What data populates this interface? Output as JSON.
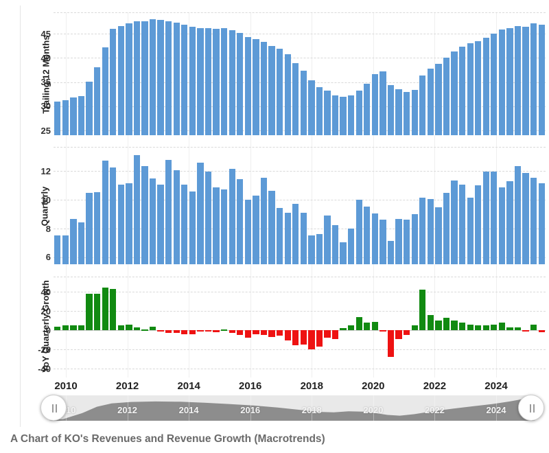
{
  "caption": "A Chart of KO's Revenues and Revenue Growth (Macrotrends)",
  "colors": {
    "blue": "#5d9ad6",
    "green": "#118a11",
    "red": "#ee1212",
    "grid": "#d9d9d9",
    "nav_track": "#e9e9e9",
    "nav_area": "#8d8d8d"
  },
  "icons": {
    "drag_handle": "grip-lines-vertical"
  },
  "xaxis": {
    "tick_labels": [
      "2010",
      "2012",
      "2014",
      "2016",
      "2018",
      "2020",
      "2022",
      "2024"
    ]
  },
  "chart_data": [
    {
      "type": "bar",
      "ylabel": "Trailing 12 Months",
      "yticks": [
        25,
        30,
        35,
        40,
        45
      ],
      "ylim": [
        24.0,
        49.4
      ],
      "series_color": "blue",
      "x_start": "2009-Q4",
      "x_end": "2025-Q1",
      "values": [
        31.0,
        31.3,
        31.8,
        32.1,
        35.1,
        38.1,
        42.2,
        46.0,
        46.6,
        47.2,
        47.5,
        47.6,
        48.0,
        47.9,
        47.6,
        47.3,
        46.9,
        46.4,
        46.2,
        46.2,
        46.0,
        46.1,
        45.7,
        45.2,
        44.3,
        43.9,
        43.3,
        42.5,
        41.9,
        40.7,
        38.9,
        37.3,
        35.4,
        33.9,
        33.2,
        32.3,
        31.9,
        32.3,
        33.3,
        34.6,
        36.6,
        37.2,
        34.3,
        33.5,
        33.0,
        33.4,
        36.4,
        37.8,
        38.7,
        40.1,
        41.3,
        42.3,
        43.0,
        43.5,
        44.1,
        45.0,
        45.8,
        46.1,
        46.5,
        46.4,
        47.1,
        46.9
      ]
    },
    {
      "type": "bar",
      "ylabel": "Quarterly",
      "yticks": [
        6,
        8,
        10,
        12
      ],
      "ylim": [
        5.52,
        13.67
      ],
      "series_color": "blue",
      "x_start": "2009-Q4",
      "x_end": "2025-Q1",
      "values": [
        7.51,
        7.53,
        8.67,
        8.43,
        10.49,
        10.52,
        12.74,
        12.25,
        11.04,
        11.14,
        13.09,
        12.34,
        11.46,
        11.04,
        12.75,
        12.03,
        11.04,
        10.58,
        12.57,
        11.98,
        10.87,
        10.71,
        12.16,
        11.43,
        10.0,
        10.28,
        11.54,
        10.63,
        9.41,
        9.12,
        9.7,
        9.08,
        7.51,
        7.63,
        8.93,
        8.25,
        7.06,
        8.02,
        10.0,
        9.51,
        9.07,
        8.6,
        7.15,
        8.65,
        8.61,
        9.02,
        10.13,
        10.04,
        9.46,
        10.49,
        11.33,
        11.06,
        10.13,
        10.98,
        11.97,
        11.95,
        10.85,
        11.3,
        12.36,
        11.85,
        11.54,
        11.13
      ]
    },
    {
      "type": "bar",
      "ylabel": "YoY Quarterly Growth",
      "yticks": [
        -40,
        -20,
        0,
        20,
        40
      ],
      "ylim": [
        -47,
        55.7
      ],
      "positive_color": "green",
      "negative_color": "red",
      "x_start": "2009-Q4",
      "x_end": "2025-Q1",
      "values": [
        4,
        5,
        5,
        5,
        38,
        38,
        44,
        43,
        5,
        6,
        3,
        1,
        4,
        -1,
        -3,
        -3,
        -4,
        -4,
        -1,
        -1,
        -2,
        1,
        -3,
        -5,
        -8,
        -4,
        -5,
        -7,
        -6,
        -11,
        -16,
        -15,
        -20,
        -17,
        -8,
        -9,
        2,
        5,
        14,
        8,
        9,
        -1,
        -28,
        -9,
        -5,
        5,
        42,
        16,
        10,
        13,
        10,
        8,
        6,
        5,
        5,
        6,
        8,
        3,
        3,
        -1,
        6,
        -2
      ]
    }
  ],
  "navigator": {
    "labels": [
      "2010",
      "2012",
      "2014",
      "2016",
      "2018",
      "2020",
      "2022",
      "2024"
    ],
    "handle_glyph": "||",
    "shape": [
      [
        0,
        3
      ],
      [
        0.03,
        6
      ],
      [
        0.07,
        30
      ],
      [
        0.1,
        55
      ],
      [
        0.13,
        68
      ],
      [
        0.17,
        74
      ],
      [
        0.22,
        76
      ],
      [
        0.27,
        75
      ],
      [
        0.32,
        71
      ],
      [
        0.37,
        66
      ],
      [
        0.42,
        60
      ],
      [
        0.47,
        52
      ],
      [
        0.52,
        42
      ],
      [
        0.555,
        35
      ],
      [
        0.585,
        33
      ],
      [
        0.615,
        37
      ],
      [
        0.645,
        36
      ],
      [
        0.67,
        30
      ],
      [
        0.695,
        23
      ],
      [
        0.72,
        20
      ],
      [
        0.75,
        26
      ],
      [
        0.79,
        38
      ],
      [
        0.83,
        48
      ],
      [
        0.87,
        57
      ],
      [
        0.91,
        66
      ],
      [
        0.945,
        76
      ],
      [
        0.97,
        85
      ],
      [
        0.99,
        94
      ],
      [
        1,
        96
      ]
    ]
  }
}
